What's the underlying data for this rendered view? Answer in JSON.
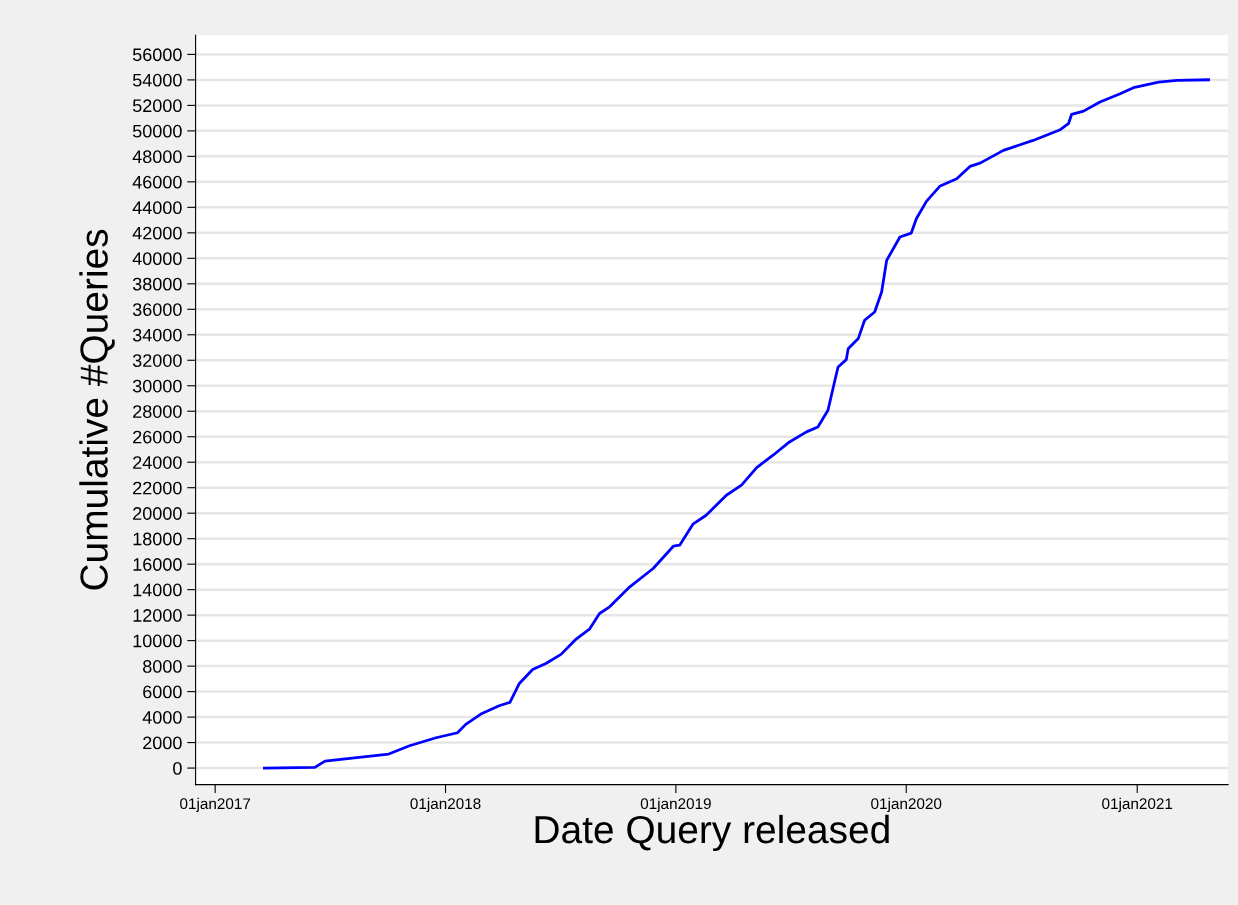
{
  "chart_data": {
    "type": "line",
    "xlabel": "Date Query released",
    "ylabel": "Cumulative #Queries",
    "x": [
      "2017-03-20",
      "2017-06-08",
      "2017-06-24",
      "2017-08-17",
      "2017-10-03",
      "2017-11-05",
      "2017-12-17",
      "2018-01-20",
      "2018-02-02",
      "2018-02-26",
      "2018-03-27",
      "2018-04-13",
      "2018-04-28",
      "2018-05-19",
      "2018-06-09",
      "2018-07-03",
      "2018-07-27",
      "2018-08-17",
      "2018-09-02",
      "2018-09-18",
      "2018-10-20",
      "2018-11-26",
      "2018-12-28",
      "2019-01-07",
      "2019-01-28",
      "2019-02-18",
      "2019-03-22",
      "2019-04-15",
      "2019-05-09",
      "2019-06-04",
      "2019-06-30",
      "2019-07-27",
      "2019-08-14",
      "2019-08-30",
      "2019-09-10",
      "2019-09-15",
      "2019-09-28",
      "2019-10-01",
      "2019-10-17",
      "2019-10-27",
      "2019-11-12",
      "2019-11-23",
      "2019-12-01",
      "2019-12-22",
      "2020-01-09",
      "2020-01-17",
      "2020-02-02",
      "2020-02-23",
      "2020-03-21",
      "2020-04-11",
      "2020-04-27",
      "2020-06-03",
      "2020-07-20",
      "2020-09-01",
      "2020-09-14",
      "2020-09-19",
      "2020-10-08",
      "2020-11-03",
      "2020-12-05",
      "2020-12-26",
      "2021-02-04",
      "2021-03-05",
      "2021-04-24"
    ],
    "series": [
      {
        "color": "#0000ff",
        "values": [
          0,
          50,
          550,
          840,
          1100,
          1750,
          2380,
          2770,
          3430,
          4240,
          4890,
          5150,
          6640,
          7740,
          8210,
          8920,
          10120,
          10900,
          12130,
          12650,
          14220,
          15660,
          17410,
          17490,
          19140,
          19840,
          21410,
          22200,
          23580,
          24550,
          25590,
          26380,
          26770,
          28080,
          30430,
          31470,
          32050,
          32910,
          33700,
          35140,
          35790,
          37360,
          39840,
          41670,
          41980,
          43110,
          44470,
          45650,
          46250,
          47210,
          47470,
          48470,
          49250,
          50090,
          50560,
          51290,
          51550,
          52260,
          52920,
          53390,
          53830,
          53960,
          54010
        ]
      }
    ],
    "xlim": [
      "2016-12-01",
      "2021-05-25"
    ],
    "xticks": [
      {
        "value": "2017-01-01",
        "label": "01jan2017"
      },
      {
        "value": "2018-01-01",
        "label": "01jan2018"
      },
      {
        "value": "2019-01-01",
        "label": "01jan2019"
      },
      {
        "value": "2020-01-01",
        "label": "01jan2020"
      },
      {
        "value": "2021-01-01",
        "label": "01jan2021"
      }
    ],
    "ylim": [
      -1300,
      57500
    ],
    "yticks": [
      0,
      2000,
      4000,
      6000,
      8000,
      10000,
      12000,
      14000,
      16000,
      18000,
      20000,
      22000,
      24000,
      26000,
      28000,
      30000,
      32000,
      34000,
      36000,
      38000,
      40000,
      42000,
      44000,
      46000,
      48000,
      50000,
      52000,
      54000,
      56000
    ],
    "grid": "y",
    "marker": "none",
    "line_style": "solid"
  }
}
